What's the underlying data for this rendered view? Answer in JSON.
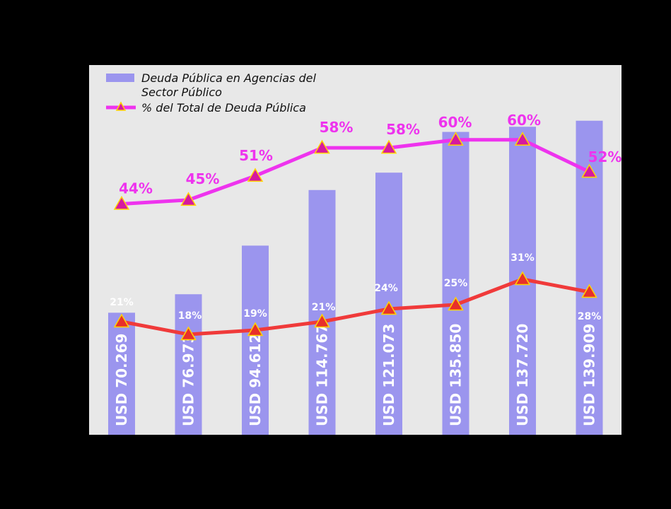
{
  "chart_data": {
    "type": "bar",
    "categories": [
      "",
      "",
      "",
      "",
      "",
      "",
      "",
      ""
    ],
    "series": [
      {
        "name": "Deuda Pública en Agencias del Sector Público",
        "kind": "bar",
        "color": "#9b95ee",
        "values": [
          70269,
          76973,
          94612,
          114767,
          121073,
          135850,
          137720,
          139909
        ],
        "labels": [
          "USD 70.269",
          "USD 76.973",
          "USD 94.612",
          "USD 114.767",
          "USD 121.073",
          "USD 135.850",
          "USD 137.720",
          "USD 139.909"
        ]
      },
      {
        "name": "% del Total de Deuda Pública",
        "kind": "line",
        "color": "#ee33ee",
        "marker_color": "#d6199f",
        "values": [
          44,
          45,
          51,
          58,
          58,
          60,
          60,
          52
        ],
        "labels": [
          "44%",
          "45%",
          "51%",
          "58%",
          "58%",
          "60%",
          "60%",
          "52%"
        ]
      },
      {
        "kind": "line",
        "color": "#f03a3a",
        "marker_color": "#e8302a",
        "values": [
          21,
          18,
          19,
          21,
          24,
          25,
          31,
          28
        ],
        "labels": [
          "21%",
          "18%",
          "19%",
          "21%",
          "24%",
          "25%",
          "31%",
          "28%"
        ]
      }
    ],
    "legend": {
      "position": "top-left",
      "entries": [
        "Deuda Pública en Agencias del",
        "Sector Público",
        "% del Total de Deuda Pública"
      ]
    },
    "grid": false,
    "colors": {
      "plot_background": "#e8e8e8",
      "page_background": "#000000",
      "marker_outline": "#ffd400"
    }
  }
}
